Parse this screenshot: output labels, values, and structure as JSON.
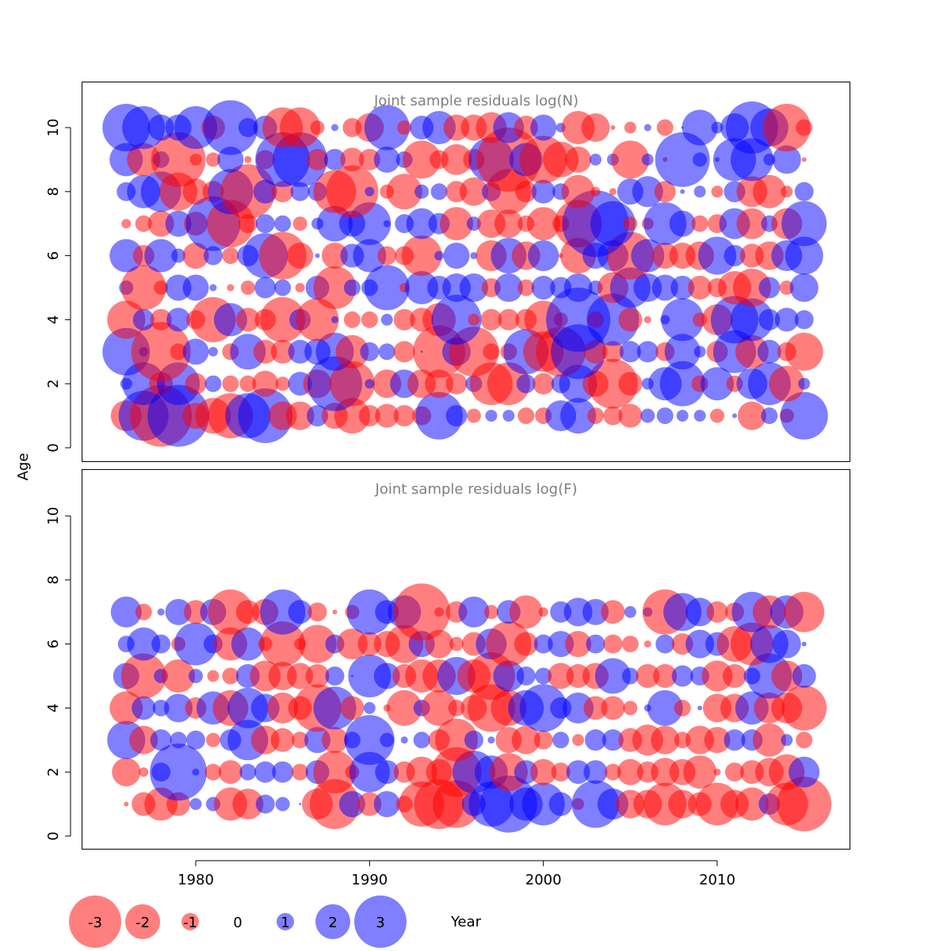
{
  "chart_data": {
    "type": "bubble",
    "xlabel": "Year",
    "ylabel": "Age",
    "x_ticks": [
      1980,
      1990,
      2000,
      2010
    ],
    "y_ticks": [
      0,
      2,
      4,
      6,
      8,
      10
    ],
    "xlim": [
      1973.5,
      2017.5
    ],
    "ylim": [
      -0.4,
      11.4
    ],
    "years": [
      1976,
      1977,
      1978,
      1979,
      1980,
      1981,
      1982,
      1983,
      1984,
      1985,
      1986,
      1987,
      1988,
      1989,
      1990,
      1991,
      1992,
      1993,
      1994,
      1995,
      1996,
      1997,
      1998,
      1999,
      2000,
      2001,
      2002,
      2003,
      2004,
      2005,
      2006,
      2007,
      2008,
      2009,
      2010,
      2011,
      2012,
      2013,
      2014,
      2015
    ],
    "colors": {
      "negative": "#ff0000",
      "positive": "#0000ff"
    },
    "legend": {
      "values": [
        -3,
        -2,
        -1,
        0,
        1,
        2,
        3
      ],
      "labels": [
        "-3",
        "-2",
        "-1",
        "0",
        "1",
        "2",
        "3"
      ]
    },
    "panels": [
      {
        "title": "Joint sample residuals log(N)",
        "ages": [
          1,
          2,
          3,
          4,
          5,
          6,
          7,
          8,
          9,
          10
        ],
        "residuals": [
          [
            -1.3,
            2.1,
            -2.6,
            2.6,
            -1.1,
            -1.5,
            -1.9,
            1.9,
            2.3,
            -1.2,
            -1.2,
            0.9,
            -1.1,
            -1.5,
            -0.9,
            -1.0,
            -0.9,
            -0.8,
            2.0,
            0.9,
            -0.6,
            0.5,
            0.5,
            -0.7,
            -0.7,
            1.3,
            1.5,
            -0.7,
            -0.8,
            -1.0,
            0.6,
            0.7,
            0.5,
            0.5,
            -0.6,
            0.2,
            -1.2,
            0.7,
            -0.6,
            2.0
          ],
          [
            0.5,
            1.8,
            -1.0,
            1.8,
            -0.9,
            0.7,
            -0.7,
            -0.7,
            -1.1,
            -0.6,
            1.0,
            -1.2,
            2.3,
            -1.9,
            0.4,
            -1.2,
            1.2,
            -1.2,
            -1.2,
            -0.9,
            0.7,
            -1.8,
            -1.8,
            0.8,
            -0.9,
            0.8,
            1.6,
            -1.1,
            -2.1,
            -1.0,
            0.5,
            1.4,
            1.9,
            -0.7,
            1.4,
            -0.7,
            1.3,
            1.8,
            -1.5,
            0.5
          ],
          [
            2.0,
            0.4,
            -2.5,
            -0.7,
            1.1,
            0.4,
            -0.7,
            1.5,
            -1.0,
            -1.0,
            1.0,
            1.1,
            1.6,
            -1.4,
            0.8,
            0.7,
            -0.9,
            0.1,
            -2.2,
            1.2,
            -2.1,
            -0.7,
            -0.7,
            1.9,
            -1.7,
            -2.1,
            2.3,
            -1.0,
            -0.9,
            0.9,
            0.9,
            -0.8,
            1.5,
            0.5,
            -0.9,
            1.8,
            -1.4,
            1.0,
            -0.8,
            -1.6
          ],
          [
            -1.6,
            0.9,
            -0.9,
            1.0,
            -0.8,
            -1.9,
            1.4,
            -1.0,
            -0.9,
            -1.9,
            0.9,
            -1.8,
            0.3,
            -0.7,
            -0.7,
            0.5,
            -0.9,
            -1.0,
            -1.4,
            2.1,
            -0.5,
            -0.9,
            -0.9,
            -0.9,
            -1.6,
            -0.6,
            2.7,
            -0.7,
            2.2,
            -1.0,
            -0.3,
            0.4,
            1.8,
            -0.6,
            -1.3,
            2.0,
            1.8,
            0.9,
            1.0,
            0.8
          ],
          [
            0.6,
            -1.9,
            -0.6,
            1.1,
            1.1,
            0.3,
            -0.3,
            -0.6,
            0.9,
            0.7,
            -0.4,
            1.0,
            -1.8,
            0.7,
            0.7,
            1.9,
            -0.4,
            1.4,
            1.0,
            1.2,
            1.2,
            -0.8,
            1.2,
            -0.7,
            1.0,
            0.9,
            1.2,
            0.6,
            -1.3,
            1.7,
            1.2,
            1.1,
            1.0,
            -1.0,
            -0.8,
            -1.4,
            -1.6,
            0.9,
            -0.6,
            1.2
          ],
          [
            1.4,
            -0.9,
            1.4,
            0.6,
            -1.1,
            0.8,
            -0.7,
            0.9,
            1.9,
            -2.0,
            -1.1,
            0.2,
            -1.1,
            1.0,
            1.4,
            -0.8,
            -0.8,
            -1.7,
            0.4,
            1.1,
            0.3,
            -1.3,
            1.5,
            -1.2,
            1.3,
            -0.2,
            -1.5,
            1.1,
            1.3,
            -2.0,
            1.4,
            -1.1,
            -1.1,
            -1.2,
            1.6,
            0.9,
            -1.0,
            -1.2,
            1.3,
            1.6
          ],
          [
            -0.4,
            -0.7,
            -1.1,
            1.1,
            -1.0,
            2.3,
            -2.0,
            -0.8,
            0.8,
            0.7,
            -0.6,
            0.5,
            1.5,
            1.1,
            1.8,
            0.3,
            0.8,
            1.3,
            0.9,
            -1.4,
            0.6,
            -1.2,
            -1.2,
            -0.7,
            -1.4,
            -0.7,
            -2.0,
            2.8,
            1.9,
            -0.6,
            -0.5,
            1.8,
            1.1,
            -0.7,
            -0.8,
            1.3,
            -1.3,
            0.7,
            -1.3,
            1.9
          ],
          [
            0.8,
            1.4,
            1.7,
            -1.6,
            -1.1,
            -0.9,
            1.9,
            -2.3,
            1.0,
            -0.9,
            0.8,
            0.8,
            -1.8,
            -2.2,
            0.4,
            -0.6,
            -1.5,
            0.6,
            0.7,
            -0.9,
            -1.2,
            0.8,
            -1.9,
            -0.9,
            1.0,
            0.7,
            -1.4,
            -0.4,
            -0.3,
            1.1,
            1.3,
            -0.9,
            0.2,
            0.5,
            -0.5,
            0.9,
            -1.3,
            -1.4,
            -0.5,
            0.8
          ],
          [
            1.4,
            -1.4,
            0.7,
            -2.3,
            -0.5,
            -0.6,
            1.1,
            -0.3,
            -0.8,
            2.3,
            2.3,
            -0.9,
            0.9,
            -1.0,
            -0.9,
            1.1,
            0.7,
            -1.6,
            -0.8,
            -1.3,
            -0.9,
            1.9,
            -2.7,
            1.4,
            -2.0,
            -1.5,
            -1.1,
            0.5,
            0.5,
            -1.6,
            0.5,
            -0.2,
            2.3,
            0.6,
            0.2,
            1.8,
            1.8,
            0.5,
            1.2,
            -0.2
          ],
          [
            2.0,
            1.8,
            1.1,
            1.1,
            1.8,
            -1.0,
            2.3,
            0.8,
            1.0,
            -1.7,
            -1.7,
            -0.6,
            0.3,
            -0.8,
            -1.2,
            1.9,
            -0.6,
            1.0,
            1.4,
            -1.1,
            -1.1,
            -1.3,
            1.3,
            -1.0,
            1.1,
            0.4,
            -1.4,
            -1.2,
            -0.2,
            -0.5,
            0.3,
            -0.7,
            0.1,
            1.5,
            0.5,
            1.2,
            2.2,
            1.6,
            -2.0,
            -0.7
          ]
        ]
      },
      {
        "title": "Joint sample residuals log(F)",
        "ages": [
          1,
          2,
          3,
          4,
          5,
          6,
          7
        ],
        "residuals": [
          [
            -0.2,
            -1.0,
            -1.4,
            -1.0,
            0.5,
            0.6,
            -1.4,
            -1.3,
            0.8,
            0.6,
            0.1,
            -1.3,
            -2.1,
            1.1,
            -1.0,
            1.1,
            -0.7,
            -1.9,
            -2.1,
            -2.0,
            1.0,
            1.9,
            2.4,
            1.4,
            1.8,
            1.0,
            -0.5,
            2.0,
            1.3,
            -1.2,
            -1.2,
            -1.8,
            -1.2,
            -1.0,
            -1.8,
            -1.2,
            -1.4,
            0.9,
            -1.8,
            -2.3
          ],
          [
            -1.2,
            -0.4,
            0.8,
            2.4,
            0.3,
            -0.7,
            -1.0,
            0.7,
            0.9,
            0.9,
            -0.7,
            1.0,
            -1.8,
            -0.6,
            1.7,
            1.0,
            -0.9,
            -1.3,
            -1.1,
            -2.1,
            1.8,
            1.4,
            -1.6,
            1.0,
            -1.1,
            -0.8,
            1.0,
            1.0,
            -0.7,
            -1.1,
            -0.9,
            -1.2,
            -1.1,
            -1.4,
            -0.3,
            -0.8,
            -1.0,
            -1.2,
            -1.5,
            1.3
          ],
          [
            1.6,
            -1.2,
            0.9,
            0.7,
            0.8,
            -0.6,
            0.9,
            1.7,
            -1.2,
            -1.0,
            -0.7,
            1.1,
            -1.1,
            0.7,
            2.1,
            0.6,
            0.3,
            0.7,
            -0.9,
            -1.8,
            0.8,
            0.3,
            -1.1,
            -1.2,
            -0.8,
            0.7,
            -0.5,
            0.9,
            0.9,
            -1.0,
            -1.3,
            -1.2,
            -0.7,
            -1.2,
            -1.1,
            0.9,
            0.9,
            -1.4,
            0.5,
            -0.7
          ],
          [
            -1.4,
            1.0,
            0.7,
            1.2,
            -0.9,
            1.4,
            -1.5,
            1.7,
            1.2,
            -1.3,
            -1.0,
            -2.0,
            1.8,
            -1.0,
            0.5,
            -0.3,
            -1.5,
            0.7,
            -1.5,
            -0.7,
            -1.1,
            -2.0,
            -1.5,
            1.5,
            2.0,
            0.9,
            1.3,
            -1.0,
            -1.0,
            -0.6,
            0.3,
            1.5,
            -0.7,
            0.2,
            -1.2,
            -1.2,
            1.4,
            -1.3,
            -1.3,
            -1.9
          ],
          [
            1.1,
            -1.9,
            0.6,
            -1.4,
            0.6,
            -0.5,
            -0.7,
            1.0,
            -1.3,
            -1.2,
            -1.1,
            -1.0,
            0.8,
            0.1,
            1.8,
            1.1,
            -1.0,
            -1.4,
            -1.4,
            1.6,
            -1.4,
            -2.0,
            1.3,
            0.8,
            0.7,
            -1.1,
            -1.0,
            -1.1,
            1.5,
            0.7,
            -1.0,
            -1.0,
            0.9,
            0.8,
            -1.3,
            -1.0,
            0.7,
            1.9,
            -1.3,
            1.0
          ],
          [
            0.7,
            1.4,
            0.8,
            -0.6,
            1.8,
            0.8,
            -1.4,
            1.4,
            -0.6,
            -1.9,
            -0.5,
            -1.6,
            0.8,
            -1.3,
            -1.0,
            -1.1,
            -1.6,
            1.1,
            -1.2,
            -0.6,
            -1.0,
            1.3,
            -1.9,
            -1.0,
            0.8,
            1.1,
            -1.1,
            0.8,
            -0.8,
            -0.7,
            -0.3,
            0.8,
            -0.9,
            1.2,
            1.0,
            -1.5,
            -1.8,
            1.6,
            1.2,
            0.2
          ],
          [
            1.3,
            -0.7,
            0.3,
            1.1,
            -1.0,
            1.1,
            -1.9,
            -1.0,
            -1.1,
            1.9,
            1.0,
            -0.8,
            -0.2,
            -0.6,
            1.9,
            1.0,
            1.4,
            -2.4,
            -0.4,
            -0.9,
            1.3,
            -0.6,
            1.0,
            -1.4,
            -0.4,
            0.9,
            1.2,
            1.1,
            -1.0,
            0.5,
            0.4,
            -1.9,
            1.6,
            1.2,
            -0.9,
            -0.8,
            1.7,
            -1.4,
            1.4,
            -1.7
          ]
        ]
      }
    ]
  }
}
